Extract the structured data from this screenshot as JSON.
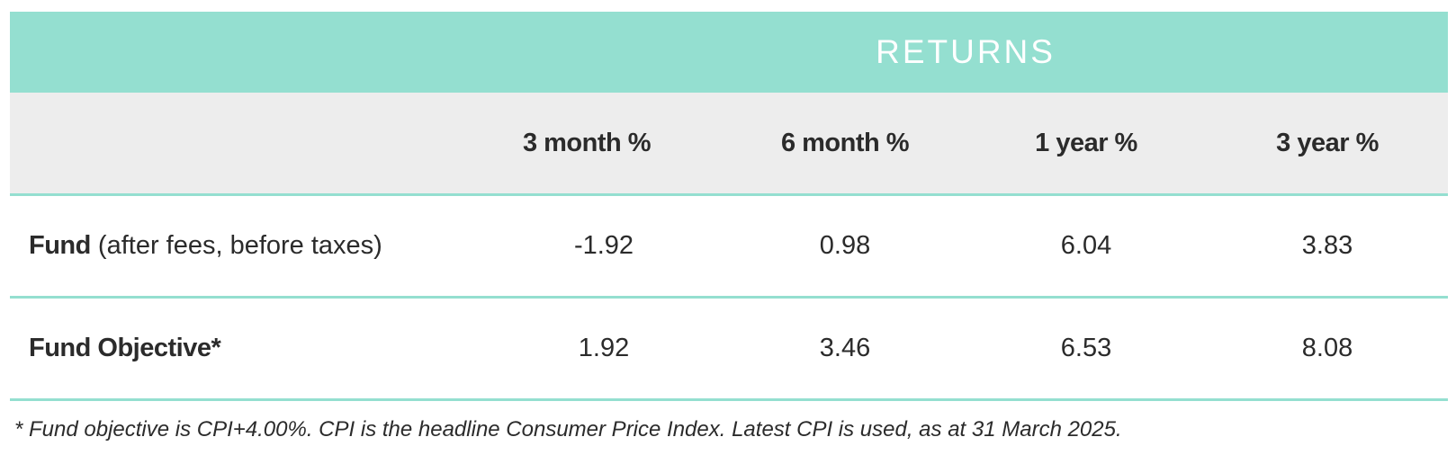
{
  "table": {
    "banner": "RETURNS",
    "columns": [
      "3 month %",
      "6 month %",
      "1 year %",
      "3 year %"
    ],
    "rows": [
      {
        "label_strong": "Fund",
        "label_note": " (after fees, before taxes)",
        "values": [
          "-1.92",
          "0.98",
          "6.04",
          "3.83"
        ]
      },
      {
        "label_strong": "Fund Objective*",
        "label_note": "",
        "values": [
          "1.92",
          "3.46",
          "6.53",
          "8.08"
        ]
      }
    ],
    "accent_color": "#94dfd0",
    "header_bg": "#ededed"
  },
  "footnote": "* Fund objective is CPI+4.00%. CPI is the headline Consumer Price Index. Latest CPI is used, as at 31 March 2025."
}
